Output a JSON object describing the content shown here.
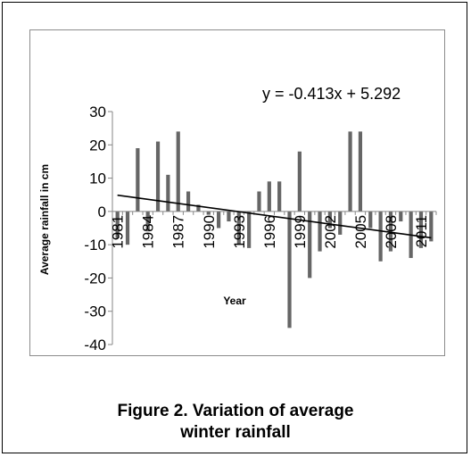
{
  "caption": {
    "line1": "Figure 2. Variation of average",
    "line2": "winter rainfall"
  },
  "chart_data": {
    "type": "bar",
    "title": "",
    "xlabel": "Year",
    "ylabel": "Average rainfall in cm",
    "ylim": [
      -40,
      30
    ],
    "yticks": [
      "30",
      "20",
      "10",
      "0",
      "-10",
      "-20",
      "-30",
      "-40"
    ],
    "xtick_labels": [
      "1981",
      "1984",
      "1987",
      "1990",
      "1993",
      "1996",
      "1999",
      "2002",
      "2005",
      "2008",
      "2011"
    ],
    "grid": false,
    "legend": "none",
    "bar_color": "#666666",
    "categories": [
      "1981",
      "1982",
      "1983",
      "1984",
      "1985",
      "1986",
      "1987",
      "1988",
      "1989",
      "1990",
      "1991",
      "1992",
      "1993",
      "1994",
      "1995",
      "1996",
      "1997",
      "1998",
      "1999",
      "2000",
      "2001",
      "2002",
      "2003",
      "2004",
      "2005",
      "2006",
      "2007",
      "2008",
      "2009",
      "2010",
      "2011",
      "2012"
    ],
    "values": [
      -8,
      -10,
      19,
      -6,
      21,
      11,
      24,
      6,
      2,
      -1,
      -5,
      -3,
      -10,
      -11,
      6,
      9,
      9,
      -35,
      18,
      -20,
      -12,
      -5,
      -7,
      24,
      24,
      -5,
      -15,
      -12,
      -3,
      -14,
      -11,
      -9
    ],
    "trendline": {
      "equation": "y = -0.413x + 5.292",
      "slope": -0.413,
      "intercept": 5.292,
      "color": "#000000"
    }
  }
}
